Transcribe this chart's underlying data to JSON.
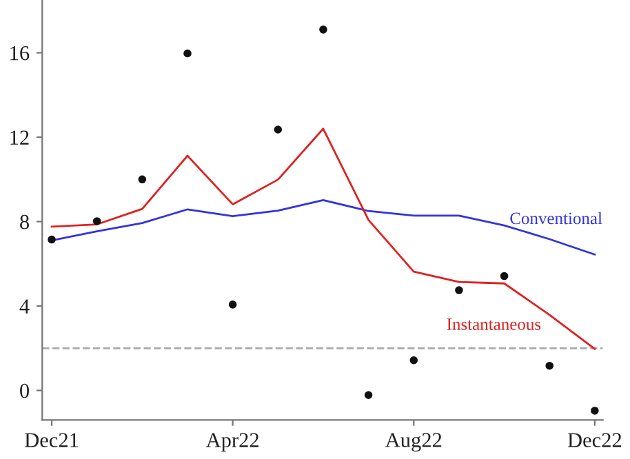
{
  "chart_data": {
    "type": "line",
    "categories": [
      "Dec21",
      null,
      null,
      null,
      "Apr22",
      null,
      null,
      null,
      "Aug22",
      null,
      null,
      null,
      "Dec22"
    ],
    "series": [
      {
        "name": "Conventional",
        "color": "#3333dd",
        "values": [
          7.11,
          7.54,
          7.93,
          8.58,
          8.26,
          8.52,
          9.02,
          8.5,
          8.28,
          8.28,
          7.82,
          7.17,
          6.44
        ]
      },
      {
        "name": "Instantaneous",
        "color": "#e02020",
        "values": [
          7.76,
          7.87,
          8.6,
          11.12,
          8.82,
          9.99,
          12.4,
          8.08,
          5.63,
          5.14,
          5.07,
          3.58,
          1.97
        ]
      },
      {
        "type": "scatter",
        "marker": "circle",
        "color": "#111111",
        "values": [
          7.15,
          8.02,
          10.0,
          15.97,
          4.07,
          12.36,
          17.1,
          -0.22,
          1.43,
          4.75,
          5.42,
          1.17,
          -0.96
        ]
      }
    ],
    "ref_lines": [
      {
        "axis": "y",
        "value": 2,
        "color": "#aaaaaa",
        "line_style": "dashed"
      }
    ],
    "ylim": [
      -1.4,
      18.5
    ],
    "yticks": [
      0,
      4,
      8,
      12,
      16
    ],
    "grid": false,
    "legend": false
  }
}
